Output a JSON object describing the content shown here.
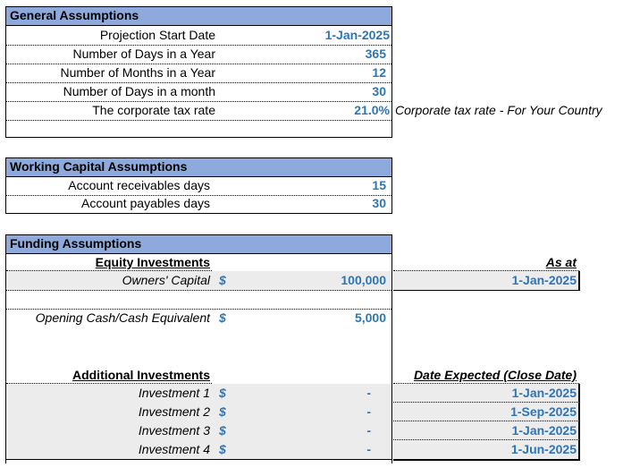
{
  "general": {
    "header": "General Assumptions",
    "rows": [
      {
        "label": "Projection Start Date",
        "value": "1-Jan-2025"
      },
      {
        "label": "Number of Days in a Year",
        "value": "365"
      },
      {
        "label": "Number of Months in a Year",
        "value": "12"
      },
      {
        "label": "Number of Days in a month",
        "value": "30"
      },
      {
        "label": "The corporate tax rate",
        "value": "21.0%",
        "note": "Corporate tax rate - For Your Country"
      }
    ]
  },
  "working_capital": {
    "header": "Working Capital Assumptions",
    "rows": [
      {
        "label": "Account receivables days",
        "value": "15"
      },
      {
        "label": "Account payables days",
        "value": "30"
      }
    ]
  },
  "funding": {
    "header": "Funding Assumptions",
    "equity_title": "Equity Investments",
    "as_at_title": "As at",
    "owners_capital": {
      "label": "Owners' Capital",
      "currency": "$",
      "value": "100,000",
      "date": "1-Jan-2025"
    },
    "opening_cash": {
      "label": "Opening Cash/Cash Equivalent",
      "currency": "$",
      "value": "5,000"
    },
    "additional_title": "Additional Investments",
    "date_expected_title": "Date Expected (Close Date)",
    "investments": [
      {
        "label": "Investment 1",
        "currency": "$",
        "value": "-",
        "date": "1-Jan-2025"
      },
      {
        "label": "Investment 2",
        "currency": "$",
        "value": "-",
        "date": "1-Sep-2025"
      },
      {
        "label": "Investment 3",
        "currency": "$",
        "value": "-",
        "date": "1-Jan-2025"
      },
      {
        "label": "Investment 4",
        "currency": "$",
        "value": "-",
        "date": "1-Jun-2025"
      }
    ]
  }
}
